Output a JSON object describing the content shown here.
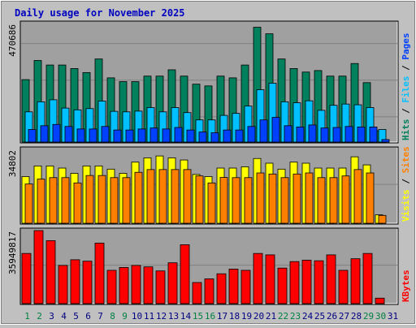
{
  "title": "Daily usage for November 2025",
  "colors": {
    "background": "#c0c0c0",
    "panel": "#a0a0a0",
    "title": "#0000c0",
    "hits": "#00805c",
    "files": "#00c0ff",
    "pages": "#0040ff",
    "visits": "#ffff00",
    "sites": "#ff8000",
    "kbytes": "#ff0000",
    "weekday_label": "#008040",
    "regular_label": "#000080"
  },
  "chart_data": [
    {
      "type": "bar",
      "panel": "hits-files-pages",
      "ylabel_max": "470686",
      "ylim": [
        0,
        470686
      ],
      "categories": [
        "1",
        "2",
        "3",
        "4",
        "5",
        "6",
        "7",
        "8",
        "9",
        "10",
        "11",
        "12",
        "13",
        "14",
        "15",
        "16",
        "17",
        "18",
        "19",
        "20",
        "21",
        "22",
        "23",
        "24",
        "25",
        "26",
        "27",
        "28",
        "29",
        "30",
        "31"
      ],
      "weekend_days": [
        "1",
        "2",
        "8",
        "9",
        "15",
        "16",
        "22",
        "23",
        "29",
        "30"
      ],
      "series": [
        {
          "name": "Hits",
          "values": [
            248000,
            324000,
            306000,
            306000,
            292000,
            276000,
            330000,
            255000,
            240000,
            240000,
            262000,
            262000,
            287000,
            262000,
            230000,
            223000,
            262000,
            255000,
            306000,
            456000,
            430000,
            330000,
            292000,
            278000,
            284000,
            262000,
            262000,
            312000,
            236000,
            45000,
            0
          ]
        },
        {
          "name": "Files",
          "values": [
            120000,
            160000,
            168000,
            135000,
            128000,
            133000,
            163000,
            122000,
            120000,
            123000,
            137000,
            120000,
            137000,
            117000,
            88000,
            88000,
            106000,
            114000,
            143000,
            208000,
            234000,
            160000,
            156000,
            164000,
            126000,
            146000,
            151000,
            148000,
            137000,
            50000,
            0
          ]
        },
        {
          "name": "Pages",
          "values": [
            50000,
            65000,
            70000,
            62000,
            52000,
            52000,
            62000,
            48000,
            48000,
            52000,
            56000,
            52000,
            58000,
            48000,
            40000,
            37000,
            48000,
            48000,
            62000,
            88000,
            98000,
            65000,
            60000,
            68000,
            56000,
            58000,
            62000,
            60000,
            60000,
            10000,
            0
          ]
        }
      ]
    },
    {
      "type": "bar",
      "panel": "visits-sites",
      "ylabel_max": "34802",
      "ylim": [
        0,
        34802
      ],
      "categories": [
        "1",
        "2",
        "3",
        "4",
        "5",
        "6",
        "7",
        "8",
        "9",
        "10",
        "11",
        "12",
        "13",
        "14",
        "15",
        "16",
        "17",
        "18",
        "19",
        "20",
        "21",
        "22",
        "23",
        "24",
        "25",
        "26",
        "27",
        "28",
        "29",
        "30",
        "31"
      ],
      "series": [
        {
          "name": "Visits",
          "values": [
            22000,
            27000,
            27000,
            26000,
            23500,
            27000,
            27000,
            25500,
            23500,
            28800,
            30800,
            31700,
            30800,
            29800,
            23000,
            22000,
            26000,
            26000,
            26600,
            30500,
            28300,
            25500,
            28800,
            28300,
            26000,
            26000,
            26000,
            31300,
            27500,
            4000,
            0
          ]
        },
        {
          "name": "Sites",
          "values": [
            18500,
            20800,
            21500,
            21500,
            19000,
            22500,
            22500,
            21500,
            21500,
            24000,
            25300,
            25300,
            25300,
            25300,
            22300,
            19000,
            21600,
            21500,
            21500,
            23700,
            23200,
            21500,
            23200,
            23700,
            21500,
            21500,
            22300,
            25300,
            23700,
            3700,
            0
          ]
        }
      ]
    },
    {
      "type": "bar",
      "panel": "kbytes",
      "ylabel_max": "35949817",
      "ylim": [
        0,
        35949817
      ],
      "categories": [
        "1",
        "2",
        "3",
        "4",
        "5",
        "6",
        "7",
        "8",
        "9",
        "10",
        "11",
        "12",
        "13",
        "14",
        "15",
        "16",
        "17",
        "18",
        "19",
        "20",
        "21",
        "22",
        "23",
        "24",
        "25",
        "26",
        "27",
        "28",
        "29",
        "30",
        "31"
      ],
      "series": [
        {
          "name": "KBytes",
          "values": [
            24700000,
            35949817,
            31000000,
            18800000,
            21600000,
            20900000,
            29800000,
            16400000,
            17800000,
            18800000,
            18100000,
            16100000,
            20100000,
            29000000,
            10400000,
            12200000,
            14700000,
            17000000,
            16400000,
            24700000,
            24000000,
            17500000,
            20700000,
            21400000,
            21100000,
            24000000,
            16400000,
            22100000,
            24700000,
            2700000,
            0
          ]
        }
      ]
    }
  ],
  "right_labels": {
    "panel1": [
      {
        "text": "Hits",
        "color": "#00805c"
      },
      {
        "text": " / ",
        "color": "#000000"
      },
      {
        "text": "Files",
        "color": "#00c0ff"
      },
      {
        "text": " / ",
        "color": "#000000"
      },
      {
        "text": "Pages",
        "color": "#0040ff"
      }
    ],
    "panel2": [
      {
        "text": "Visits",
        "color": "#ffff00"
      },
      {
        "text": " / ",
        "color": "#000000"
      },
      {
        "text": "Sites",
        "color": "#ff8000"
      }
    ],
    "panel3": [
      {
        "text": "KBytes",
        "color": "#ff0000"
      }
    ]
  }
}
